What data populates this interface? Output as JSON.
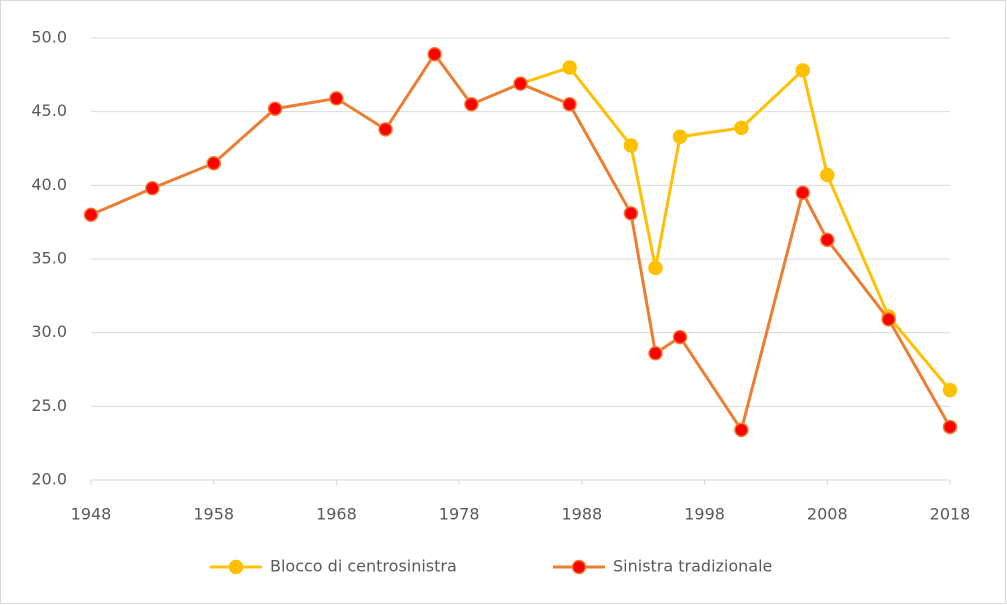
{
  "chart_data": {
    "type": "line",
    "x": [
      1948,
      1953,
      1958,
      1963,
      1968,
      1972,
      1976,
      1979,
      1983,
      1987,
      1992,
      1994,
      1996,
      2001,
      2006,
      2008,
      2013,
      2018
    ],
    "series": [
      {
        "name": "Blocco di centrosinistra",
        "color": "#ffc000",
        "marker_color": "#ffc000",
        "values": [
          null,
          null,
          null,
          null,
          null,
          null,
          null,
          null,
          46.9,
          48.0,
          42.7,
          34.4,
          43.3,
          43.9,
          47.8,
          40.7,
          31.1,
          26.1
        ]
      },
      {
        "name": "Sinistra tradizionale",
        "color": "#ed7d31",
        "marker_color": "#ff0000",
        "values": [
          38.0,
          39.8,
          41.5,
          45.2,
          45.9,
          43.8,
          48.9,
          45.5,
          46.9,
          45.5,
          38.1,
          28.6,
          29.7,
          23.4,
          39.5,
          36.3,
          30.9,
          23.6
        ]
      }
    ],
    "xlim": [
      1948,
      2018
    ],
    "xticks": [
      1948,
      1958,
      1968,
      1978,
      1988,
      1998,
      2008,
      2018
    ],
    "ylim": [
      20,
      50
    ],
    "yticks": [
      {
        "value": 20,
        "label": "20.0"
      },
      {
        "value": 25,
        "label": "25.0"
      },
      {
        "value": 30,
        "label": "30.0"
      },
      {
        "value": 35,
        "label": "35.0"
      },
      {
        "value": 40,
        "label": "40.0"
      },
      {
        "value": 45,
        "label": "45.0"
      },
      {
        "value": 50,
        "label": "50.0"
      }
    ],
    "grid": true,
    "legend": "bottom"
  }
}
